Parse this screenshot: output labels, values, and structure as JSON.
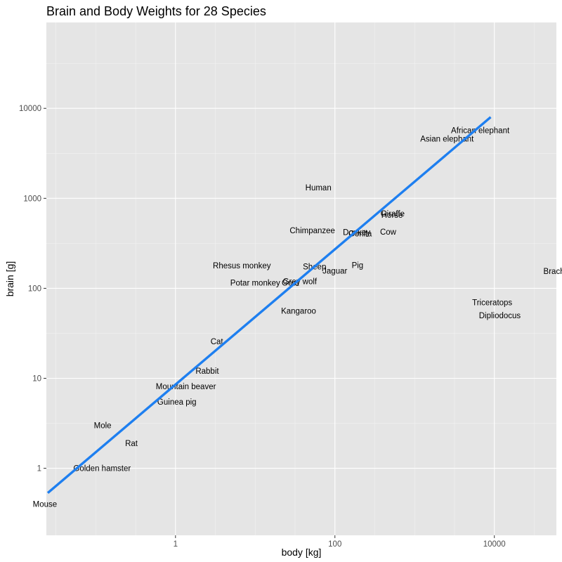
{
  "chart_data": {
    "type": "scatter",
    "title": "Brain and Body Weights for 28 Species",
    "xlabel": "body [kg]",
    "ylabel": "brain [g]",
    "x_scale": "log10",
    "y_scale": "log10",
    "xlim": [
      0.024,
      60000
    ],
    "ylim": [
      0.18,
      90000
    ],
    "x_ticks": [
      {
        "value": 1,
        "label": "1"
      },
      {
        "value": 100,
        "label": "100"
      },
      {
        "value": 10000,
        "label": "10000"
      }
    ],
    "y_ticks": [
      {
        "value": 1,
        "label": "1"
      },
      {
        "value": 10,
        "label": "10"
      },
      {
        "value": 100,
        "label": "100"
      },
      {
        "value": 1000,
        "label": "1000"
      },
      {
        "value": 10000,
        "label": "10000"
      }
    ],
    "grid": true,
    "background": "#e5e5e5",
    "fit_line": {
      "color": "#1e7ff0",
      "x": [
        0.023,
        87000
      ],
      "y": [
        0.5,
        44000
      ]
    },
    "points": [
      {
        "label": "Mountain beaver",
        "body": 1.35,
        "brain": 8.1
      },
      {
        "label": "Cow",
        "body": 465,
        "brain": 423
      },
      {
        "label": "Grey wolf",
        "body": 36.33,
        "brain": 119.5
      },
      {
        "label": "Goat",
        "body": 27.66,
        "brain": 115
      },
      {
        "label": "Guinea pig",
        "body": 1.04,
        "brain": 5.5
      },
      {
        "label": "Dipliodocus",
        "body": 11700,
        "brain": 50
      },
      {
        "label": "Asian elephant",
        "body": 2547,
        "brain": 4603
      },
      {
        "label": "Donkey",
        "body": 187.1,
        "brain": 419
      },
      {
        "label": "Horse",
        "body": 521,
        "brain": 655
      },
      {
        "label": "Potar monkey",
        "body": 10,
        "brain": 115
      },
      {
        "label": "Cat",
        "body": 3.3,
        "brain": 25.6
      },
      {
        "label": "Giraffe",
        "body": 529,
        "brain": 680
      },
      {
        "label": "Gorilla",
        "body": 207,
        "brain": 406
      },
      {
        "label": "Human",
        "body": 62,
        "brain": 1320
      },
      {
        "label": "African elephant",
        "body": 6654,
        "brain": 5712
      },
      {
        "label": "Triceratops",
        "body": 9400,
        "brain": 70
      },
      {
        "label": "Rhesus monkey",
        "body": 6.8,
        "brain": 179
      },
      {
        "label": "Kangaroo",
        "body": 35,
        "brain": 56
      },
      {
        "label": "Golden hamster",
        "body": 0.12,
        "brain": 1
      },
      {
        "label": "Mouse",
        "body": 0.023,
        "brain": 0.4
      },
      {
        "label": "Rabbit",
        "body": 2.5,
        "brain": 12.1
      },
      {
        "label": "Sheep",
        "body": 55.5,
        "brain": 175
      },
      {
        "label": "Jaguar",
        "body": 100,
        "brain": 157
      },
      {
        "label": "Chimpanzee",
        "body": 52.16,
        "brain": 440
      },
      {
        "label": "Rat",
        "body": 0.28,
        "brain": 1.9
      },
      {
        "label": "Brachiosaurus",
        "body": 87000,
        "brain": 154.5
      },
      {
        "label": "Mole",
        "body": 0.122,
        "brain": 3
      },
      {
        "label": "Pig",
        "body": 192,
        "brain": 180
      }
    ]
  }
}
